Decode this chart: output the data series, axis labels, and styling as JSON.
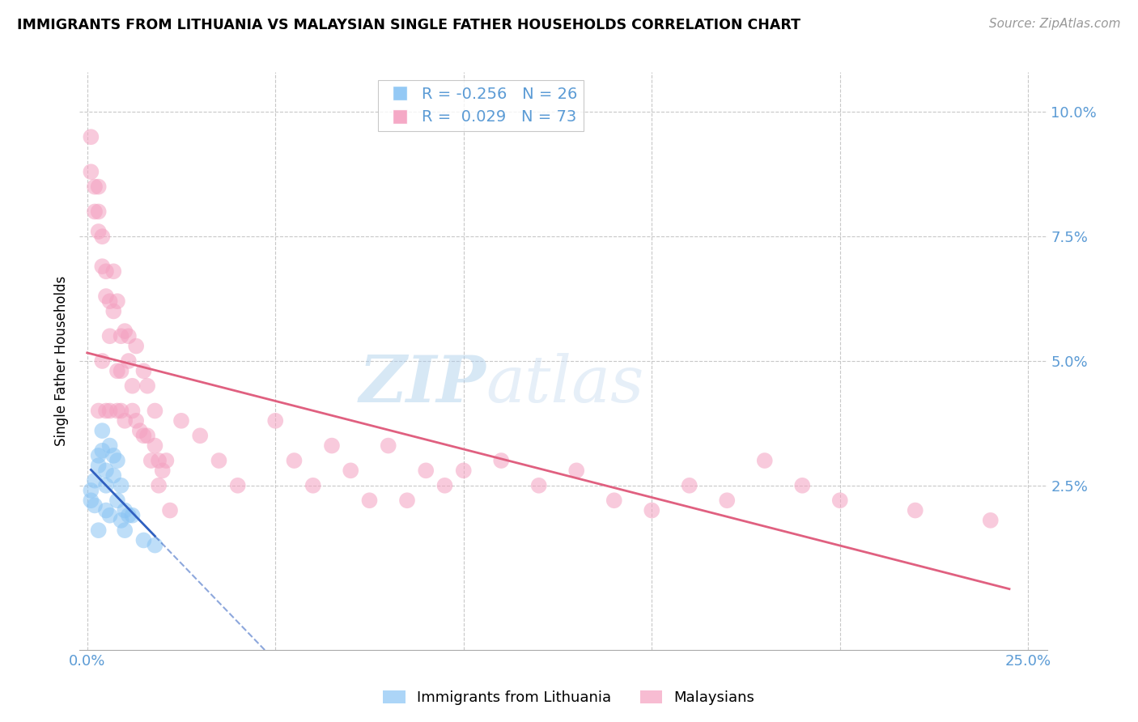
{
  "title": "IMMIGRANTS FROM LITHUANIA VS MALAYSIAN SINGLE FATHER HOUSEHOLDS CORRELATION CHART",
  "source": "Source: ZipAtlas.com",
  "ylabel": "Single Father Households",
  "lithuania_color": "#89C4F4",
  "malaysian_color": "#F4A0C0",
  "legend_r_lith": "-0.256",
  "legend_n_lith": "26",
  "legend_r_malay": "0.029",
  "legend_n_malay": "73",
  "lith_line_color": "#3060C0",
  "malay_line_color": "#E06080",
  "grid_color": "#C8C8C8",
  "tick_color": "#5B9BD5",
  "xlim": [
    -0.002,
    0.255
  ],
  "ylim": [
    -0.008,
    0.108
  ],
  "xticks": [
    0.0,
    0.05,
    0.1,
    0.15,
    0.2,
    0.25
  ],
  "xticklabels": [
    "0.0%",
    "",
    "",
    "",
    "",
    "25.0%"
  ],
  "ytick_vals": [
    0.025,
    0.05,
    0.075,
    0.1
  ],
  "ytick_labels": [
    "2.5%",
    "5.0%",
    "7.5%",
    "10.0%"
  ],
  "lithuania_x": [
    0.001,
    0.001,
    0.002,
    0.002,
    0.003,
    0.003,
    0.003,
    0.004,
    0.004,
    0.005,
    0.005,
    0.005,
    0.006,
    0.006,
    0.007,
    0.007,
    0.008,
    0.008,
    0.009,
    0.009,
    0.01,
    0.01,
    0.011,
    0.012,
    0.015,
    0.018
  ],
  "lithuania_y": [
    0.024,
    0.022,
    0.026,
    0.021,
    0.031,
    0.029,
    0.016,
    0.036,
    0.032,
    0.028,
    0.025,
    0.02,
    0.033,
    0.019,
    0.031,
    0.027,
    0.03,
    0.022,
    0.025,
    0.018,
    0.02,
    0.016,
    0.019,
    0.019,
    0.014,
    0.013
  ],
  "malaysian_x": [
    0.001,
    0.001,
    0.002,
    0.002,
    0.003,
    0.003,
    0.003,
    0.003,
    0.004,
    0.004,
    0.004,
    0.005,
    0.005,
    0.005,
    0.006,
    0.006,
    0.006,
    0.007,
    0.007,
    0.008,
    0.008,
    0.008,
    0.009,
    0.009,
    0.009,
    0.01,
    0.01,
    0.011,
    0.011,
    0.012,
    0.012,
    0.013,
    0.013,
    0.014,
    0.015,
    0.015,
    0.016,
    0.016,
    0.017,
    0.018,
    0.018,
    0.019,
    0.019,
    0.02,
    0.021,
    0.022,
    0.025,
    0.03,
    0.035,
    0.04,
    0.05,
    0.055,
    0.06,
    0.065,
    0.07,
    0.075,
    0.08,
    0.085,
    0.09,
    0.095,
    0.1,
    0.11,
    0.12,
    0.13,
    0.14,
    0.15,
    0.16,
    0.17,
    0.18,
    0.19,
    0.2,
    0.22,
    0.24
  ],
  "malaysian_y": [
    0.095,
    0.088,
    0.085,
    0.08,
    0.085,
    0.08,
    0.076,
    0.04,
    0.075,
    0.069,
    0.05,
    0.068,
    0.063,
    0.04,
    0.062,
    0.055,
    0.04,
    0.068,
    0.06,
    0.048,
    0.062,
    0.04,
    0.055,
    0.048,
    0.04,
    0.056,
    0.038,
    0.055,
    0.05,
    0.04,
    0.045,
    0.038,
    0.053,
    0.036,
    0.048,
    0.035,
    0.045,
    0.035,
    0.03,
    0.04,
    0.033,
    0.03,
    0.025,
    0.028,
    0.03,
    0.02,
    0.038,
    0.035,
    0.03,
    0.025,
    0.038,
    0.03,
    0.025,
    0.033,
    0.028,
    0.022,
    0.033,
    0.022,
    0.028,
    0.025,
    0.028,
    0.03,
    0.025,
    0.028,
    0.022,
    0.02,
    0.025,
    0.022,
    0.03,
    0.025,
    0.022,
    0.02,
    0.018
  ]
}
